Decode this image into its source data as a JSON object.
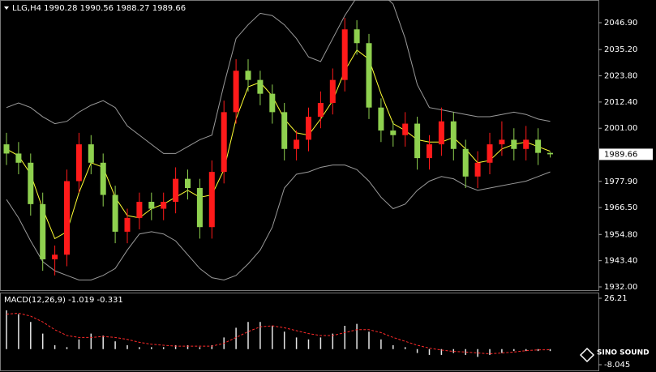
{
  "chart_data": [
    {
      "type": "candlestick",
      "title": "LLG,H4 1990.28 1990.56 1988.27 1989.66",
      "open": [
        1994,
        1990,
        1986,
        1968,
        1944,
        1946,
        1978,
        1994,
        1986,
        1972,
        1956,
        1962,
        1969,
        1966,
        1969,
        1979,
        1975,
        1958,
        1982,
        2008,
        2026,
        2022,
        2016,
        2008,
        1992,
        1996,
        2006,
        2012,
        2022,
        2044,
        2038,
        2010,
        2000,
        1998,
        2003,
        1988,
        1994,
        2004,
        1992,
        1980,
        1986,
        1994,
        1996,
        1992,
        1996,
        1990.28
      ],
      "high": [
        1999,
        1995,
        1990,
        1973,
        1950,
        1983,
        1999,
        1998,
        1990,
        1976,
        1966,
        1973,
        1973,
        1973,
        1984,
        1983,
        1979,
        1987,
        2013,
        2031,
        2031,
        2026,
        2020,
        2012,
        2000,
        2010,
        2017,
        2027,
        2049,
        2048,
        2042,
        2014,
        2004,
        2008,
        2006,
        1998,
        2010,
        2008,
        1996,
        1991,
        1999,
        2004,
        2001,
        2002,
        2001,
        1990.56
      ],
      "low": [
        1985,
        1981,
        1963,
        1939,
        1937,
        1941,
        1973,
        1981,
        1967,
        1951,
        1951,
        1957,
        1961,
        1961,
        1964,
        1970,
        1953,
        1953,
        1977,
        2003,
        2017,
        2011,
        2003,
        1987,
        1987,
        1991,
        2001,
        2007,
        2017,
        2033,
        2005,
        1995,
        1993,
        1993,
        1983,
        1983,
        1989,
        1987,
        1975,
        1975,
        1981,
        1989,
        1987,
        1987,
        1985,
        1988.27
      ],
      "close": [
        1990,
        1986,
        1968,
        1944,
        1946,
        1978,
        1994,
        1986,
        1972,
        1956,
        1962,
        1969,
        1966,
        1969,
        1979,
        1975,
        1958,
        1982,
        2008,
        2026,
        2022,
        2016,
        2008,
        1992,
        1996,
        2006,
        2012,
        2022,
        2044,
        2038,
        2010,
        2000,
        1998,
        2003,
        1988,
        1994,
        2004,
        1992,
        1980,
        1986,
        1994,
        1996,
        1992,
        1996,
        1990.28,
        1989.66
      ],
      "up_color": "#ff1a1a",
      "down_color": "#8fd14f",
      "lines": [
        {
          "color": "#ffff33",
          "values": [
            1992,
            1989,
            1981,
            1966,
            1953,
            1956,
            1973,
            1986,
            1984,
            1971,
            1963,
            1962,
            1966,
            1968,
            1971,
            1974,
            1971,
            1972,
            1983,
            2005,
            2019,
            2021,
            2015,
            2005,
            1999,
            1998,
            2005,
            2013,
            2026,
            2035,
            2031,
            2016,
            2003,
            2000,
            1996,
            1995,
            1995,
            1997,
            1992,
            1986,
            1987,
            1992,
            1994,
            1995,
            1993,
            1991
          ]
        },
        {
          "color": "#9a9a9a",
          "values": [
            2010,
            2012,
            2010,
            2006,
            2003,
            2004,
            2008,
            2011,
            2013,
            2010,
            2002,
            1998,
            1994,
            1990,
            1990,
            1993,
            1996,
            1998,
            2020,
            2040,
            2046,
            2051,
            2050,
            2046,
            2040,
            2032,
            2030,
            2040,
            2050,
            2058,
            2060,
            2060,
            2055,
            2040,
            2020,
            2010,
            2009,
            2008,
            2007,
            2006,
            2006,
            2007,
            2008,
            2007,
            2005,
            2004
          ]
        },
        {
          "color": "#9a9a9a",
          "values": [
            1970,
            1962,
            1952,
            1943,
            1939,
            1937,
            1935,
            1935,
            1937,
            1940,
            1948,
            1955,
            1956,
            1955,
            1952,
            1946,
            1940,
            1936,
            1935,
            1937,
            1942,
            1948,
            1958,
            1975,
            1981,
            1982,
            1984,
            1985,
            1985,
            1983,
            1978,
            1971,
            1966,
            1968,
            1974,
            1978,
            1980,
            1979,
            1976,
            1974,
            1975,
            1976,
            1977,
            1978,
            1980,
            1982
          ]
        }
      ],
      "ylim": [
        1930.94,
        2056.77
      ],
      "yticks": [
        {
          "value": 2046.9,
          "label": "2046.90"
        },
        {
          "value": 2035.2,
          "label": "2035.20"
        },
        {
          "value": 2023.8,
          "label": "2023.80"
        },
        {
          "value": 2012.4,
          "label": "2012.40"
        },
        {
          "value": 2001,
          "label": "2001.00"
        },
        {
          "value": 1977.9,
          "label": "1977.90"
        },
        {
          "value": 1966.5,
          "label": "1966.50"
        },
        {
          "value": 1954.8,
          "label": "1954.80"
        },
        {
          "value": 1943.4,
          "label": "1943.40"
        },
        {
          "value": 1932,
          "label": "1932.00"
        }
      ],
      "watermark": "SINO SOUND"
    },
    {
      "type": "macd",
      "title": "MACD(12,26,9) -1.019 -0.331",
      "histogram": [
        20,
        18,
        14,
        8,
        2,
        1,
        5,
        8,
        7,
        4,
        2,
        1,
        1,
        1,
        2,
        2,
        1,
        2,
        6,
        11,
        14,
        14,
        12,
        9,
        6,
        5,
        6,
        8,
        12,
        13,
        9,
        5,
        2,
        1,
        -2,
        -3,
        -3,
        -2,
        -3,
        -4,
        -3,
        -2,
        -1,
        -1,
        -1,
        -1.019
      ],
      "signal": [
        18,
        18.5,
        17,
        14,
        10,
        7,
        6,
        6,
        6.5,
        6,
        5,
        3.5,
        2.5,
        2,
        1.5,
        1.5,
        1.5,
        1.5,
        3,
        6,
        9,
        11.5,
        12,
        11,
        9.5,
        8,
        7,
        7,
        8.5,
        10,
        10,
        8.5,
        6,
        4,
        2,
        0.5,
        -0.5,
        -1.2,
        -1.5,
        -2,
        -2.4,
        -2,
        -1.5,
        -0.8,
        -0.4,
        -0.331
      ],
      "histogram_color": "#e6e6e6",
      "signal_color": "#ff2a2a",
      "ylim": [
        -10.55,
        28.72
      ],
      "yticks": [
        26.21,
        -8.045
      ]
    }
  ]
}
